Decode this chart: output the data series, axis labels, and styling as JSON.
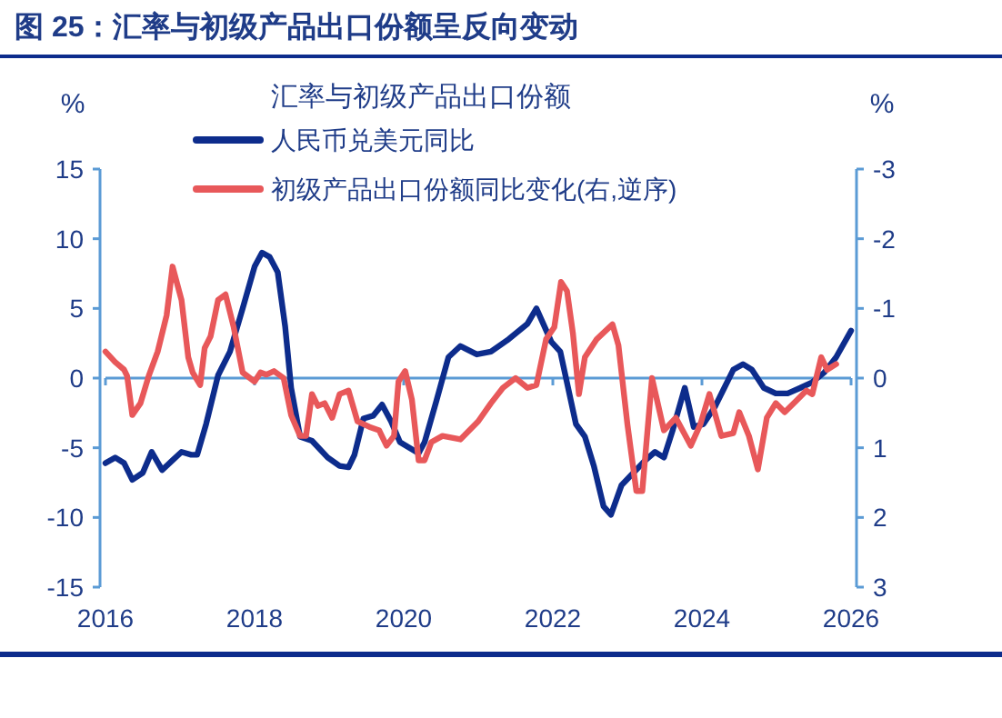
{
  "chart_data": {
    "type": "line",
    "title": "图 25：汇率与初级产品出口份额呈反向变动",
    "legend_title": "汇率与初级产品出口份额",
    "ylabel": "%",
    "y2label": "%",
    "xlim": [
      2016,
      2026
    ],
    "xticks": [
      2016,
      2018,
      2020,
      2022,
      2024,
      2026
    ],
    "ylim": [
      -15,
      15
    ],
    "yticks": [
      -15,
      -10,
      -5,
      0,
      5,
      10,
      15
    ],
    "y2lim": [
      3,
      -3
    ],
    "y2ticks": [
      -3,
      -2,
      -1,
      0,
      1,
      2,
      3
    ],
    "ref_lines": [
      {
        "axis": "y",
        "value": 0,
        "color": "#5b9bd5"
      }
    ],
    "grid": false,
    "legend": "top",
    "marker": "none",
    "line_style": "solid",
    "series": [
      {
        "name": "人民币兑美元同比",
        "color": "#0d2c8c",
        "x": [
          2016.0,
          2016.13,
          2016.25,
          2016.36,
          2016.5,
          2016.62,
          2016.76,
          2016.9,
          2017.02,
          2017.15,
          2017.23,
          2017.35,
          2017.51,
          2017.67,
          2017.84,
          2018.0,
          2018.1,
          2018.2,
          2018.31,
          2018.41,
          2018.49,
          2018.61,
          2018.77,
          2018.98,
          2019.14,
          2019.26,
          2019.34,
          2019.46,
          2019.59,
          2019.71,
          2019.83,
          2019.95,
          2020.2,
          2020.28,
          2020.44,
          2020.6,
          2020.76,
          2020.98,
          2021.17,
          2021.41,
          2021.66,
          2021.78,
          2021.98,
          2022.1,
          2022.31,
          2022.43,
          2022.55,
          2022.68,
          2022.78,
          2022.92,
          2023.08,
          2023.24,
          2023.37,
          2023.49,
          2023.61,
          2023.77,
          2023.89,
          2024.02,
          2024.18,
          2024.3,
          2024.42,
          2024.55,
          2024.67,
          2024.83,
          2024.99,
          2025.15,
          2025.32,
          2025.48,
          2025.64,
          2025.8,
          2026.0
        ],
        "values": [
          -6.1,
          -5.7,
          -6.1,
          -7.3,
          -6.8,
          -5.3,
          -6.6,
          -5.9,
          -5.3,
          -5.5,
          -5.5,
          -3.3,
          0.2,
          1.9,
          5.0,
          8.0,
          9.0,
          8.7,
          7.6,
          3.7,
          -0.7,
          -4.2,
          -4.5,
          -5.7,
          -6.3,
          -6.4,
          -5.5,
          -2.9,
          -2.7,
          -1.9,
          -3.1,
          -4.6,
          -5.4,
          -4.6,
          -1.6,
          1.5,
          2.3,
          1.7,
          1.9,
          2.8,
          3.9,
          5.0,
          2.6,
          1.9,
          -3.3,
          -4.2,
          -6.3,
          -9.2,
          -9.8,
          -7.7,
          -6.8,
          -5.9,
          -5.3,
          -5.7,
          -3.7,
          -0.7,
          -3.5,
          -3.3,
          -2.0,
          -0.7,
          0.6,
          1.0,
          0.6,
          -0.7,
          -1.1,
          -1.1,
          -0.7,
          -0.3,
          0.4,
          1.5,
          3.4
        ]
      },
      {
        "name": "初级产品出口份额同比变化(右,逆序)",
        "color": "#e8585a",
        "axis": "y2",
        "x": [
          2016.0,
          2016.13,
          2016.25,
          2016.29,
          2016.36,
          2016.47,
          2016.58,
          2016.7,
          2016.82,
          2016.9,
          2017.02,
          2017.11,
          2017.17,
          2017.27,
          2017.33,
          2017.41,
          2017.51,
          2017.61,
          2017.72,
          2017.84,
          2018.0,
          2018.08,
          2018.16,
          2018.26,
          2018.39,
          2018.49,
          2018.61,
          2018.69,
          2018.77,
          2018.85,
          2018.94,
          2019.04,
          2019.14,
          2019.26,
          2019.38,
          2019.54,
          2019.67,
          2019.77,
          2019.87,
          2019.93,
          2020.02,
          2020.11,
          2020.2,
          2020.28,
          2020.37,
          2020.52,
          2020.76,
          2021.0,
          2021.17,
          2021.33,
          2021.5,
          2021.66,
          2021.78,
          2021.91,
          2022.02,
          2022.11,
          2022.19,
          2022.27,
          2022.35,
          2022.43,
          2022.59,
          2022.67,
          2022.8,
          2022.88,
          2023.0,
          2023.12,
          2023.2,
          2023.33,
          2023.49,
          2023.65,
          2023.85,
          2023.98,
          2024.1,
          2024.26,
          2024.42,
          2024.5,
          2024.63,
          2024.75,
          2024.87,
          2024.99,
          2025.11,
          2025.28,
          2025.4,
          2025.48,
          2025.6,
          2025.68,
          2025.8
        ],
        "values": [
          -0.38,
          -0.23,
          -0.12,
          -0.03,
          0.53,
          0.36,
          -0.03,
          -0.38,
          -0.9,
          -1.6,
          -1.12,
          -0.3,
          -0.08,
          0.1,
          -0.43,
          -0.6,
          -1.12,
          -1.2,
          -0.73,
          -0.08,
          0.05,
          -0.08,
          -0.05,
          -0.1,
          0.0,
          0.53,
          0.83,
          0.83,
          0.23,
          0.4,
          0.36,
          0.57,
          0.23,
          0.18,
          0.62,
          0.7,
          0.75,
          0.97,
          0.83,
          0.05,
          -0.1,
          0.31,
          1.18,
          1.18,
          0.92,
          0.83,
          0.88,
          0.62,
          0.36,
          0.14,
          0.0,
          0.14,
          0.1,
          -0.56,
          -0.73,
          -1.38,
          -1.25,
          -0.64,
          0.23,
          -0.3,
          -0.56,
          -0.64,
          -0.77,
          -0.47,
          0.66,
          1.62,
          1.62,
          0.0,
          0.75,
          0.57,
          0.97,
          0.66,
          0.23,
          0.83,
          0.79,
          0.49,
          0.83,
          1.31,
          0.57,
          0.36,
          0.49,
          0.31,
          0.18,
          0.23,
          -0.3,
          -0.12,
          -0.2
        ]
      }
    ]
  }
}
